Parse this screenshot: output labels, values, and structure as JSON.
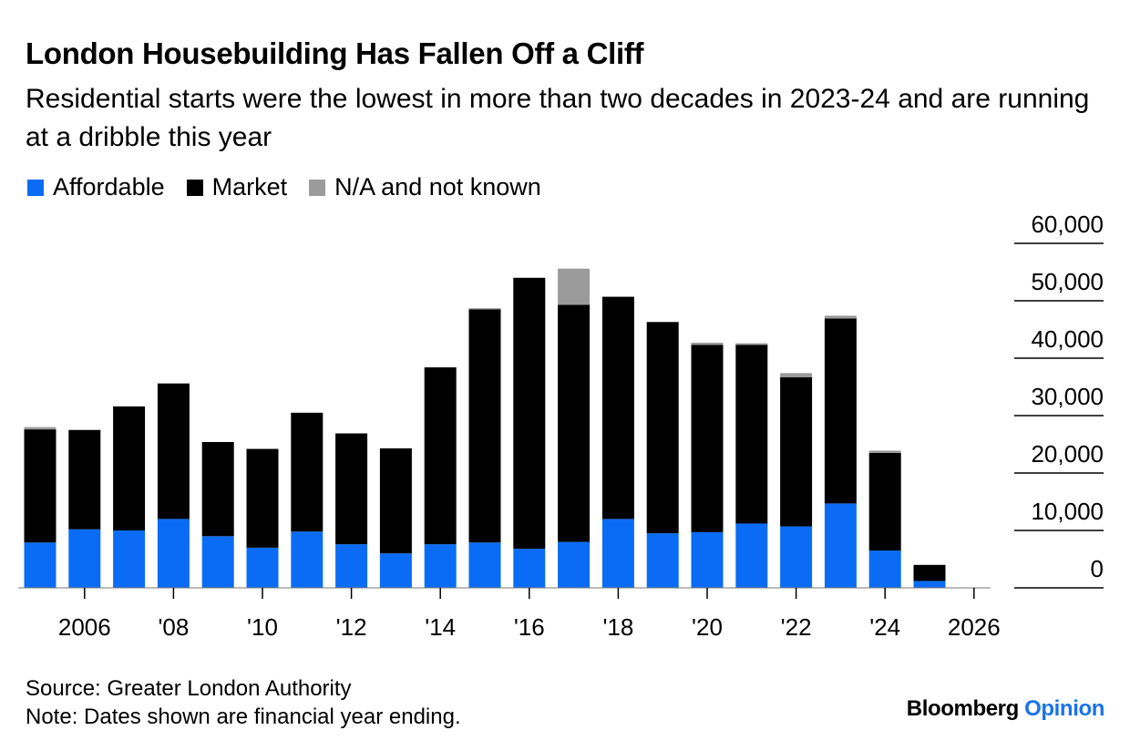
{
  "title": "London Housebuilding Has Fallen Off a Cliff",
  "subtitle": "Residential starts were the lowest in more than two decades in 2023-24 and are running at a dribble this year",
  "footer": {
    "source": "Source: Greater London Authority",
    "note": "Note: Dates shown are financial year ending.",
    "brand_main": "Bloomberg",
    "brand_accent": "Opinion"
  },
  "colors": {
    "affordable": "#0a6cf5",
    "market": "#000000",
    "na": "#9b9b9b",
    "accent": "#1a73e8"
  },
  "chart_data": {
    "type": "bar",
    "stacked": true,
    "title": "London Housebuilding Has Fallen Off a Cliff",
    "subtitle": "Residential starts were the lowest in more than two decades in 2023-24 and are running at a dribble this year",
    "xlabel": "",
    "ylabel": "",
    "ylim": [
      0,
      60000
    ],
    "yticks": [
      0,
      10000,
      20000,
      30000,
      40000,
      50000,
      60000
    ],
    "ytick_labels": [
      "0",
      "10,000",
      "20,000",
      "30,000",
      "40,000",
      "50,000",
      "60,000"
    ],
    "y_axis_side": "right",
    "legend_position": "top-left",
    "grid": true,
    "categories": [
      2005,
      2006,
      2007,
      2008,
      2009,
      2010,
      2011,
      2012,
      2013,
      2014,
      2015,
      2016,
      2017,
      2018,
      2019,
      2020,
      2021,
      2022,
      2023,
      2024,
      2025,
      2026
    ],
    "xticks": [
      2006,
      2008,
      2010,
      2012,
      2014,
      2016,
      2018,
      2020,
      2022,
      2024,
      2026
    ],
    "xtick_labels": [
      "2006",
      "'08",
      "'10",
      "'12",
      "'14",
      "'16",
      "'18",
      "'20",
      "'22",
      "'24",
      "2026"
    ],
    "series": [
      {
        "name": "Affordable",
        "color": "#0a6cf5",
        "values": [
          7900,
          10200,
          10000,
          12000,
          9000,
          7000,
          9800,
          7600,
          6000,
          7600,
          7900,
          6800,
          8000,
          12000,
          9500,
          9700,
          11200,
          10700,
          14700,
          6500,
          1200,
          0
        ]
      },
      {
        "name": "Market",
        "color": "#000000",
        "values": [
          19700,
          17300,
          21600,
          23600,
          16400,
          17200,
          20700,
          19300,
          18300,
          30800,
          40600,
          47200,
          41300,
          38700,
          36800,
          32600,
          31100,
          26000,
          32200,
          17000,
          2800,
          0
        ]
      },
      {
        "name": "N/A and not known",
        "color": "#9b9b9b",
        "values": [
          400,
          0,
          0,
          0,
          0,
          0,
          0,
          0,
          0,
          0,
          200,
          0,
          6300,
          0,
          0,
          400,
          300,
          700,
          500,
          400,
          0,
          0
        ]
      }
    ]
  }
}
